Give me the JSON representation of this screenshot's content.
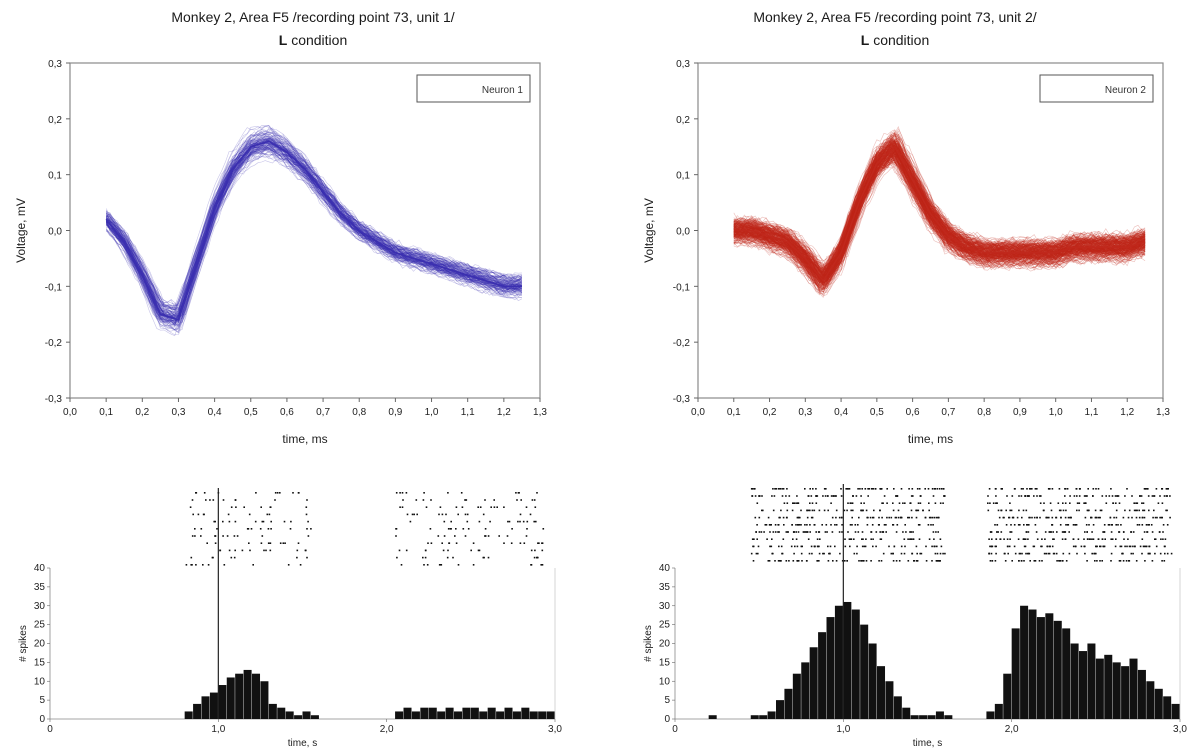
{
  "chart_data": [
    {
      "type": "line",
      "title": "Monkey 2, Area F5 /recording point 73, unit 1/",
      "subtitle_bold": "L",
      "subtitle_rest": " condition",
      "xlabel": "time, ms",
      "ylabel": "Voltage, mV",
      "xlim": [
        0.0,
        1.3
      ],
      "ylim": [
        -0.3,
        0.3
      ],
      "xticks": [
        "0,0",
        "0,1",
        "0,2",
        "0,3",
        "0,4",
        "0,5",
        "0,6",
        "0,7",
        "0,8",
        "0,9",
        "1,0",
        "1,1",
        "1,2",
        "1,3"
      ],
      "yticks": [
        "-0,3",
        "-0,2",
        "-0,1",
        "0,0",
        "0,1",
        "0,2",
        "0,3"
      ],
      "legend": "Neuron 1",
      "legend_position": "top-right",
      "color": "#3b2fb0",
      "series": [
        {
          "x": [
            0.1,
            0.15,
            0.2,
            0.25,
            0.3,
            0.35,
            0.4,
            0.45,
            0.5,
            0.55,
            0.6,
            0.65,
            0.7,
            0.75,
            0.8,
            0.85,
            0.9,
            0.95,
            1.0,
            1.05,
            1.1,
            1.15,
            1.2,
            1.25
          ],
          "y": [
            0.02,
            -0.02,
            -0.08,
            -0.15,
            -0.16,
            -0.06,
            0.04,
            0.11,
            0.15,
            0.16,
            0.14,
            0.11,
            0.07,
            0.03,
            0.0,
            -0.02,
            -0.04,
            -0.05,
            -0.06,
            -0.07,
            -0.08,
            -0.09,
            -0.1,
            -0.1
          ]
        }
      ]
    },
    {
      "type": "line",
      "title": "Monkey 2, Area F5 /recording point 73, unit 2/",
      "subtitle_bold": "L",
      "subtitle_rest": " condition",
      "xlabel": "time, ms",
      "ylabel": "Voltage, mV",
      "xlim": [
        0.0,
        1.3
      ],
      "ylim": [
        -0.3,
        0.3
      ],
      "xticks": [
        "0,0",
        "0,1",
        "0,2",
        "0,3",
        "0,4",
        "0,5",
        "0,6",
        "0,7",
        "0,8",
        "0,9",
        "1,0",
        "1,1",
        "1,2",
        "1,3"
      ],
      "yticks": [
        "-0,3",
        "-0,2",
        "-0,1",
        "0,0",
        "0,1",
        "0,2",
        "0,3"
      ],
      "legend": "Neuron 2",
      "legend_position": "top-right",
      "color": "#c0281c",
      "series": [
        {
          "x": [
            0.1,
            0.15,
            0.2,
            0.25,
            0.3,
            0.35,
            0.4,
            0.45,
            0.5,
            0.55,
            0.6,
            0.65,
            0.7,
            0.75,
            0.8,
            0.85,
            0.9,
            0.95,
            1.0,
            1.05,
            1.1,
            1.15,
            1.2,
            1.25
          ],
          "y": [
            0.0,
            0.0,
            -0.01,
            -0.02,
            -0.05,
            -0.09,
            -0.04,
            0.05,
            0.12,
            0.15,
            0.09,
            0.03,
            -0.01,
            -0.03,
            -0.04,
            -0.04,
            -0.04,
            -0.04,
            -0.04,
            -0.03,
            -0.03,
            -0.03,
            -0.03,
            -0.02
          ]
        }
      ]
    },
    {
      "type": "bar",
      "xlabel": "time, s",
      "ylabel": "# spikes",
      "xlim": [
        0.0,
        3.0
      ],
      "ylim": [
        0,
        40
      ],
      "xticks": [
        "0",
        "1,0",
        "2,0",
        "3,0"
      ],
      "yticks": [
        "0",
        "5",
        "10",
        "15",
        "20",
        "25",
        "30",
        "35",
        "40"
      ],
      "event_line_x": 1.0,
      "x": [
        0.8,
        0.85,
        0.9,
        0.95,
        1.0,
        1.05,
        1.1,
        1.15,
        1.2,
        1.25,
        1.3,
        1.35,
        1.4,
        1.45,
        1.5,
        1.55,
        2.05,
        2.1,
        2.15,
        2.2,
        2.25,
        2.3,
        2.35,
        2.4,
        2.45,
        2.5,
        2.55,
        2.6,
        2.65,
        2.7,
        2.75,
        2.8,
        2.85,
        2.9,
        2.95
      ],
      "values": [
        2,
        4,
        6,
        7,
        9,
        11,
        12,
        13,
        12,
        10,
        4,
        3,
        2,
        1,
        2,
        1,
        2,
        3,
        2,
        3,
        3,
        2,
        3,
        2,
        3,
        3,
        2,
        3,
        2,
        3,
        2,
        3,
        2,
        2,
        2
      ],
      "raster_ranges": [
        [
          0.8,
          1.55
        ],
        [
          2.05,
          2.95
        ]
      ]
    },
    {
      "type": "bar",
      "xlabel": "time, s",
      "ylabel": "# spikes",
      "xlim": [
        0.0,
        3.0
      ],
      "ylim": [
        0,
        40
      ],
      "xticks": [
        "0",
        "1,0",
        "2,0",
        "3,0"
      ],
      "yticks": [
        "0",
        "5",
        "10",
        "15",
        "20",
        "25",
        "30",
        "35",
        "40"
      ],
      "event_line_x": 1.0,
      "x": [
        0.2,
        0.45,
        0.5,
        0.55,
        0.6,
        0.65,
        0.7,
        0.75,
        0.8,
        0.85,
        0.9,
        0.95,
        1.0,
        1.05,
        1.1,
        1.15,
        1.2,
        1.25,
        1.3,
        1.35,
        1.4,
        1.45,
        1.5,
        1.55,
        1.6,
        1.85,
        1.9,
        1.95,
        2.0,
        2.05,
        2.1,
        2.15,
        2.2,
        2.25,
        2.3,
        2.35,
        2.4,
        2.45,
        2.5,
        2.55,
        2.6,
        2.65,
        2.7,
        2.75,
        2.8,
        2.85,
        2.9,
        2.95
      ],
      "values": [
        1,
        1,
        1,
        2,
        5,
        8,
        12,
        15,
        19,
        23,
        27,
        30,
        31,
        29,
        25,
        20,
        14,
        10,
        6,
        3,
        1,
        1,
        1,
        2,
        1,
        2,
        4,
        12,
        24,
        30,
        29,
        27,
        28,
        26,
        24,
        20,
        18,
        20,
        16,
        17,
        15,
        14,
        16,
        13,
        10,
        8,
        6,
        4
      ],
      "raster_ranges": [
        [
          0.45,
          1.6
        ],
        [
          1.85,
          2.95
        ]
      ]
    }
  ]
}
